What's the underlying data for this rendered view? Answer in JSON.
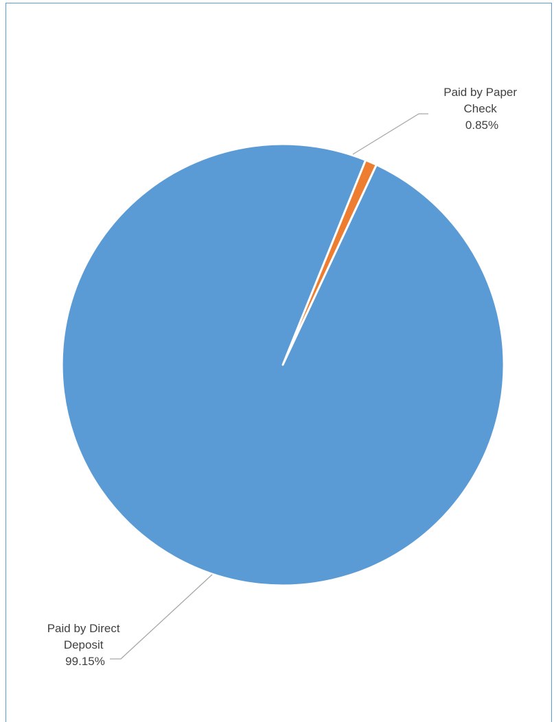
{
  "chart_data": {
    "type": "pie",
    "title": "",
    "slices": [
      {
        "label_lines": [
          "Paid by Paper",
          "Check"
        ],
        "value_label": "0.85%",
        "value": 0.85,
        "color": "#ed7d31"
      },
      {
        "label_lines": [
          "Paid by Direct",
          "Deposit"
        ],
        "value_label": "99.15%",
        "value": 99.15,
        "color": "#5b9bd5"
      }
    ],
    "start_angle_deg": 0,
    "direction": "clockwise",
    "legend": "none",
    "data_labels": "outside-with-leader-lines"
  }
}
